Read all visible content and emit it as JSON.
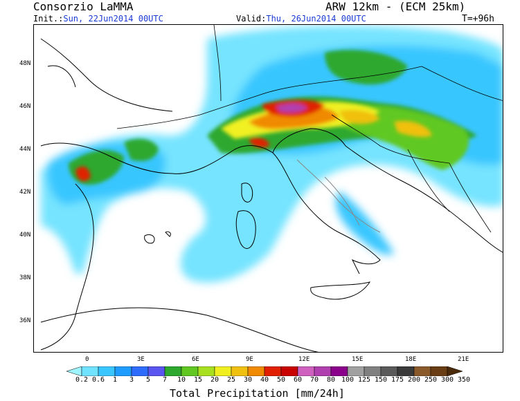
{
  "header": {
    "org": "Consorzio LaMMA",
    "model": "ARW 12km - (ECM 25km)",
    "init_label": "Init.:",
    "init_value": "Sun, 22Jun2014 00UTC",
    "valid_label": "Valid:",
    "valid_value": "Thu, 26Jun2014 00UTC",
    "lead": "T=+96h"
  },
  "axes": {
    "lat_labels": [
      "48N",
      "46N",
      "44N",
      "42N",
      "40N",
      "38N",
      "36N"
    ],
    "lon_labels": [
      "0",
      "3E",
      "6E",
      "9E",
      "12E",
      "15E",
      "18E",
      "21E"
    ]
  },
  "colorbar": {
    "title": "Total Precipitation [mm/24h]",
    "levels": [
      "0.2",
      "0.6",
      "1",
      "3",
      "5",
      "7",
      "10",
      "15",
      "20",
      "25",
      "30",
      "40",
      "50",
      "60",
      "70",
      "80",
      "100",
      "125",
      "150",
      "175",
      "200",
      "250",
      "300",
      "350"
    ],
    "colors": [
      "#9ff5ff",
      "#6fe3ff",
      "#39c6ff",
      "#1e9cff",
      "#2e6cff",
      "#5a55f0",
      "#2ea82e",
      "#60c820",
      "#a8e020",
      "#f0f020",
      "#f0c010",
      "#f08a00",
      "#e02000",
      "#c80000",
      "#d060c0",
      "#b040b0",
      "#8a008a",
      "#a0a0a0",
      "#808080",
      "#5a5a5a",
      "#3a3a3a",
      "#8b5a2b",
      "#6a3e14",
      "#4a2a0a"
    ]
  },
  "colors": {
    "label_blue": "#1a3ad6"
  }
}
